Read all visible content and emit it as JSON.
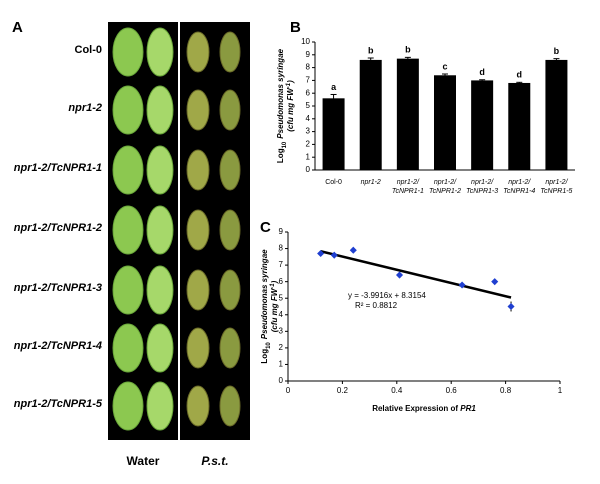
{
  "panel_a": {
    "label": "A",
    "rows": [
      "Col-0",
      "npr1-2",
      "npr1-2/TcNPR1-1",
      "npr1-2/TcNPR1-2",
      "npr1-2/TcNPR1-3",
      "npr1-2/TcNPR1-4",
      "npr1-2/TcNPR1-5"
    ],
    "columns": [
      "Water",
      "P.s.t."
    ]
  },
  "chart_data": [
    {
      "type": "bar",
      "label": "B",
      "ylabel": {
        "line1": [
          "Log",
          "10",
          "Pseudomonas syringae"
        ],
        "line2": [
          "(cfu mg FW",
          "-1",
          ")"
        ]
      },
      "categories": [
        [
          "Col-0"
        ],
        [
          "npr1-2"
        ],
        [
          "npr1-2/",
          "TcNPR1-1"
        ],
        [
          "npr1-2/",
          "TcNPR1-2"
        ],
        [
          "npr1-2/",
          "TcNPR1-3"
        ],
        [
          "npr1-2/",
          "TcNPR1-4"
        ],
        [
          "npr1-2/",
          "TcNPR1-5"
        ]
      ],
      "values": [
        5.6,
        8.6,
        8.7,
        7.4,
        7.0,
        6.8,
        8.6
      ],
      "errors": [
        0.3,
        0.15,
        0.1,
        0.1,
        0.05,
        0.05,
        0.1
      ],
      "letters": [
        "a",
        "b",
        "b",
        "c",
        "d",
        "d",
        "b"
      ],
      "color": "#000000",
      "ylim": [
        0,
        10
      ],
      "yticks": [
        0,
        1,
        2,
        3,
        4,
        5,
        6,
        7,
        8,
        9,
        10
      ]
    },
    {
      "type": "scatter",
      "label": "C",
      "ylabel": {
        "line1": [
          "Log",
          "10",
          "Pseudomonas syringae"
        ],
        "line2": [
          "(cfu mg FW",
          "-1",
          ")"
        ]
      },
      "xlabel": [
        "Relative Expression of ",
        "PR1"
      ],
      "x": [
        0.12,
        0.17,
        0.24,
        0.41,
        0.64,
        0.76,
        0.82
      ],
      "values": [
        7.7,
        7.6,
        7.9,
        6.4,
        5.8,
        6.0,
        4.5
      ],
      "errors": [
        null,
        null,
        0.15,
        null,
        null,
        null,
        0.3
      ],
      "color": "#1f3fd0",
      "trendline": {
        "slope": -3.9916,
        "intercept": 8.3154,
        "x_range": [
          0.12,
          0.82
        ]
      },
      "equation": "y = -3.9916x + 8.3154",
      "r2": "R² = 0.8812",
      "xlim": [
        0,
        1
      ],
      "xticks": [
        0,
        0.2,
        0.4,
        0.6,
        0.8,
        1
      ],
      "ylim": [
        0,
        9
      ],
      "yticks": [
        0,
        1,
        2,
        3,
        4,
        5,
        6,
        7,
        8,
        9
      ]
    }
  ]
}
